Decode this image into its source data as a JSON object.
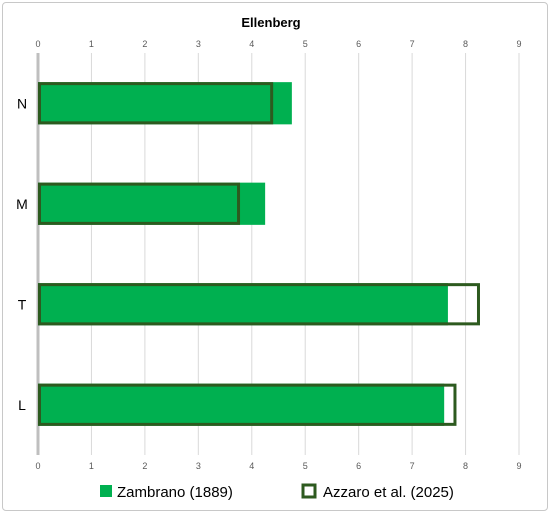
{
  "chart_data": {
    "type": "bar",
    "orientation": "horizontal",
    "title": "Ellenberg",
    "categories": [
      "N",
      "M",
      "T",
      "L"
    ],
    "xlim": [
      0,
      9
    ],
    "xticks": [
      "0",
      "1",
      "2",
      "3",
      "4",
      "5",
      "6",
      "7",
      "8",
      "9"
    ],
    "tick_axes": [
      "top",
      "bottom"
    ],
    "grid": true,
    "legend_position": "bottom",
    "series": [
      {
        "name": "Zambrano (1889)",
        "style": "filled",
        "color": "#00b050",
        "values": [
          4.75,
          4.25,
          7.67,
          7.6
        ]
      },
      {
        "name": "Azzaro et al. (2025)",
        "style": "outline",
        "color": "#2d5a1f",
        "values": [
          4.4,
          3.78,
          8.27,
          7.83
        ]
      }
    ]
  }
}
